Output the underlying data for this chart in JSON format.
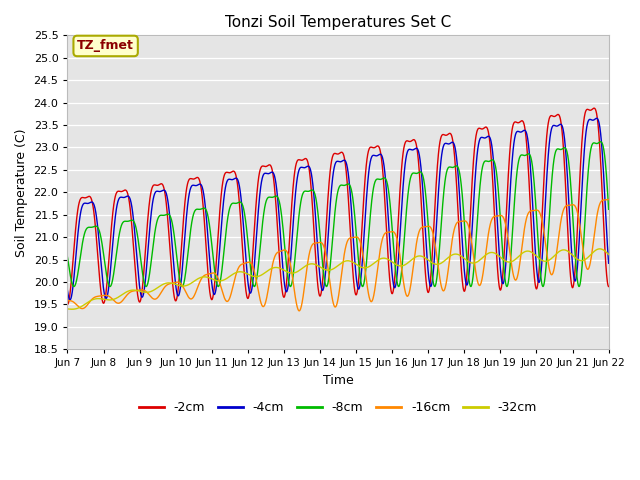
{
  "title": "Tonzi Soil Temperatures Set C",
  "xlabel": "Time",
  "ylabel": "Soil Temperature (C)",
  "ylim": [
    18.5,
    25.5
  ],
  "bg_color": "#e5e5e5",
  "grid_color": "white",
  "series": [
    {
      "label": "-2cm",
      "color": "#dd0000",
      "lw": 1.0
    },
    {
      "label": "-4cm",
      "color": "#0000cc",
      "lw": 1.0
    },
    {
      "label": "-8cm",
      "color": "#00bb00",
      "lw": 1.0
    },
    {
      "label": "-16cm",
      "color": "#ff8800",
      "lw": 1.0
    },
    {
      "label": "-32cm",
      "color": "#cccc00",
      "lw": 1.0
    }
  ],
  "annotation_text": "TZ_fmet",
  "annotation_color": "#8b0000",
  "annotation_bg": "#ffffcc",
  "annotation_border": "#aaaa00",
  "x_tick_labels": [
    "Jun 7",
    "Jun 8",
    "Jun 9",
    "Jun 10",
    "Jun 11",
    "Jun 12",
    "Jun 13",
    "Jun 14",
    "Jun 15",
    "Jun 16",
    "Jun 17",
    "Jun 18",
    "Jun 19",
    "Jun 20",
    "Jun 21",
    "Jun 22"
  ],
  "x_tick_positions": [
    0,
    1,
    2,
    3,
    4,
    5,
    6,
    7,
    8,
    9,
    10,
    11,
    12,
    13,
    14,
    15
  ],
  "y_ticks": [
    18.5,
    19.0,
    19.5,
    20.0,
    20.5,
    21.0,
    21.5,
    22.0,
    22.5,
    23.0,
    23.5,
    24.0,
    24.5,
    25.0,
    25.5
  ]
}
